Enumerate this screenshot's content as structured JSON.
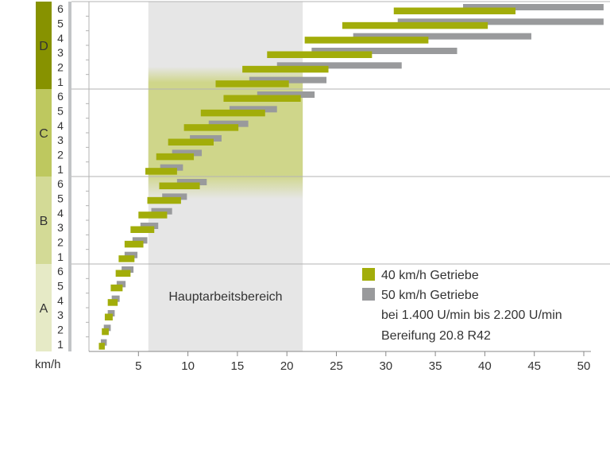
{
  "chart_data": {
    "type": "bar",
    "subtype": "floating-range",
    "title": "",
    "xlabel": "km/h",
    "x_ticks": [
      5,
      10,
      15,
      20,
      25,
      30,
      35,
      40,
      45,
      50
    ],
    "xlim": [
      0,
      52
    ],
    "highlight": {
      "label": "Hauptarbeitsbereich",
      "x_range": [
        6,
        21.6
      ],
      "emphasized_groups": [
        "C"
      ]
    },
    "groups": [
      {
        "name": "D",
        "gears": [
          {
            "gear": "1",
            "g40": [
              12.8,
              20.2
            ],
            "g50": [
              16.2,
              24.0
            ]
          },
          {
            "gear": "2",
            "g40": [
              15.5,
              24.2
            ],
            "g50": [
              19.0,
              31.6
            ]
          },
          {
            "gear": "3",
            "g40": [
              18.0,
              28.6
            ],
            "g50": [
              22.5,
              37.2
            ]
          },
          {
            "gear": "4",
            "g40": [
              21.8,
              34.3
            ],
            "g50": [
              26.7,
              44.7
            ]
          },
          {
            "gear": "5",
            "g40": [
              25.6,
              40.3
            ],
            "g50": [
              31.2,
              52.0
            ]
          },
          {
            "gear": "6",
            "g40": [
              30.8,
              43.1
            ],
            "g50": [
              37.8,
              52.0
            ]
          }
        ]
      },
      {
        "name": "C",
        "gears": [
          {
            "gear": "1",
            "g40": [
              5.7,
              8.9
            ],
            "g50": [
              7.2,
              9.5
            ]
          },
          {
            "gear": "2",
            "g40": [
              6.8,
              10.6
            ],
            "g50": [
              8.4,
              11.4
            ]
          },
          {
            "gear": "3",
            "g40": [
              8.0,
              12.6
            ],
            "g50": [
              10.2,
              13.4
            ]
          },
          {
            "gear": "4",
            "g40": [
              9.6,
              15.1
            ],
            "g50": [
              12.1,
              16.1
            ]
          },
          {
            "gear": "5",
            "g40": [
              11.3,
              17.8
            ],
            "g50": [
              14.2,
              19.0
            ]
          },
          {
            "gear": "6",
            "g40": [
              13.6,
              21.4
            ],
            "g50": [
              17.0,
              22.8
            ]
          }
        ]
      },
      {
        "name": "B",
        "gears": [
          {
            "gear": "1",
            "g40": [
              3.0,
              4.6
            ],
            "g50": [
              3.6,
              4.9
            ]
          },
          {
            "gear": "2",
            "g40": [
              3.6,
              5.5
            ],
            "g50": [
              4.4,
              5.9
            ]
          },
          {
            "gear": "3",
            "g40": [
              4.2,
              6.6
            ],
            "g50": [
              5.2,
              7.0
            ]
          },
          {
            "gear": "4",
            "g40": [
              5.0,
              7.9
            ],
            "g50": [
              6.3,
              8.4
            ]
          },
          {
            "gear": "5",
            "g40": [
              5.9,
              9.3
            ],
            "g50": [
              7.4,
              9.9
            ]
          },
          {
            "gear": "6",
            "g40": [
              7.1,
              11.2
            ],
            "g50": [
              8.9,
              11.9
            ]
          }
        ]
      },
      {
        "name": "A",
        "gears": [
          {
            "gear": "1",
            "g40": [
              1.0,
              1.6
            ],
            "g50": [
              1.2,
              1.8
            ]
          },
          {
            "gear": "2",
            "g40": [
              1.3,
              2.0
            ],
            "g50": [
              1.5,
              2.2
            ]
          },
          {
            "gear": "3",
            "g40": [
              1.6,
              2.4
            ],
            "g50": [
              1.9,
              2.6
            ]
          },
          {
            "gear": "4",
            "g40": [
              1.9,
              2.9
            ],
            "g50": [
              2.3,
              3.1
            ]
          },
          {
            "gear": "5",
            "g40": [
              2.2,
              3.4
            ],
            "g50": [
              2.8,
              3.7
            ]
          },
          {
            "gear": "6",
            "g40": [
              2.7,
              4.2
            ],
            "g50": [
              3.3,
              4.5
            ]
          }
        ]
      }
    ],
    "legend": {
      "placement": "bottom-right",
      "entries": [
        {
          "label": "40 km/h Getriebe",
          "color": "#a2ad0a"
        },
        {
          "label": "50 km/h Getriebe",
          "color": "#999a9c"
        }
      ],
      "notes": [
        "bei 1.400 U/min bis 2.200 U/min",
        "Bereifung 20.8 R42"
      ]
    }
  },
  "colors": {
    "g40": "#a2ad0a",
    "g50": "#999a9c",
    "highlight_band": "#e6e6e6",
    "highlight_green": "#cfd68a",
    "group_fills": {
      "D": "#879200",
      "C": "#bec85f",
      "B": "#d3da96",
      "A": "#e6eac6"
    },
    "gear_strip": "#c2c4c6",
    "grid": "#b3b3b3"
  }
}
